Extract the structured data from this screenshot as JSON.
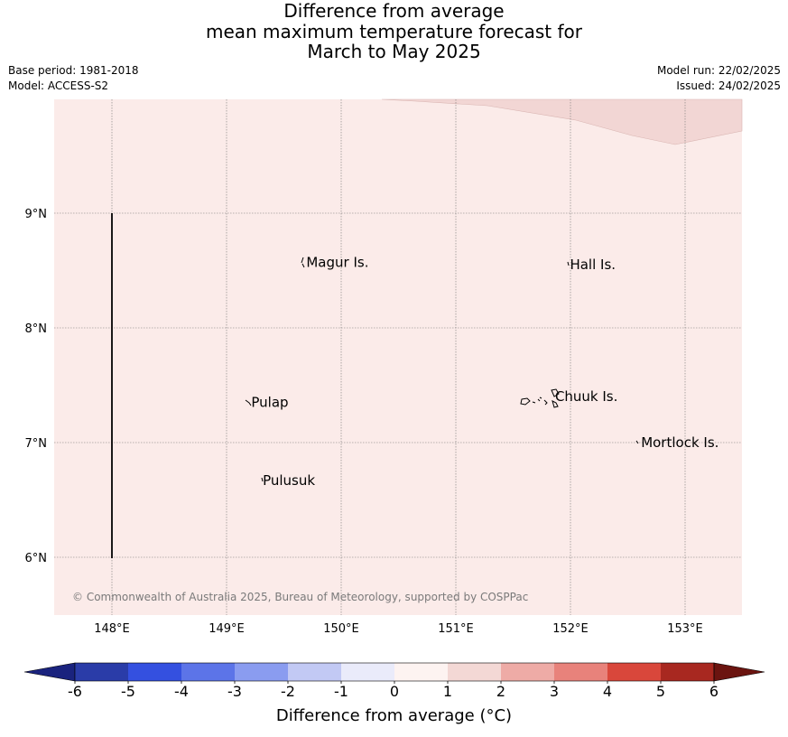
{
  "title": {
    "line1": "Difference from average",
    "line2": "mean maximum temperature forecast for",
    "line3": "March to May 2025"
  },
  "meta": {
    "base_period": "Base period: 1981-2018",
    "model": "Model: ACCESS-S2",
    "model_run": "Model run: 22/02/2025",
    "issued": "Issued: 24/02/2025"
  },
  "map": {
    "lon_ticks": [
      148,
      149,
      150,
      151,
      152,
      153
    ],
    "lon_tick_labels": [
      "148°E",
      "149°E",
      "150°E",
      "151°E",
      "152°E",
      "153°E"
    ],
    "lat_ticks": [
      9,
      8,
      7,
      6
    ],
    "lat_tick_labels": [
      "9°N",
      "8°N",
      "7°N",
      "6°N"
    ],
    "background_color": "#fbebe9",
    "warm_region_color": "#f2d6d4",
    "places": [
      {
        "name": "Magur Is.",
        "lon": 149.68,
        "lat": 8.57
      },
      {
        "name": "Hall Is.",
        "lon": 151.98,
        "lat": 8.55
      },
      {
        "name": "Pulap",
        "lon": 149.2,
        "lat": 7.35
      },
      {
        "name": "Chuuk Is.",
        "lon": 151.85,
        "lat": 7.4
      },
      {
        "name": "Mortlock Is.",
        "lon": 152.6,
        "lat": 7.0
      },
      {
        "name": "Pulusuk",
        "lon": 149.3,
        "lat": 6.67
      }
    ],
    "copyright": "© Commonwealth of Australia 2025, Bureau of Meteorology, supported by COSPPac"
  },
  "colorbar": {
    "ticks": [
      "-6",
      "-5",
      "-4",
      "-3",
      "-2",
      "-1",
      "0",
      "1",
      "2",
      "3",
      "4",
      "5",
      "6"
    ],
    "colors": [
      "#2a3ca8",
      "#3450e0",
      "#5c74e8",
      "#8a9cf0",
      "#c2c9f4",
      "#eaebfa",
      "#fdf3f1",
      "#f3d8d5",
      "#eeaba6",
      "#e8827b",
      "#d9473b",
      "#a82820"
    ],
    "under_color": "#1a237e",
    "over_color": "#6b1410",
    "label": "Difference from average ($^\\circ$C)",
    "label_display": "Difference from average (°C)"
  }
}
